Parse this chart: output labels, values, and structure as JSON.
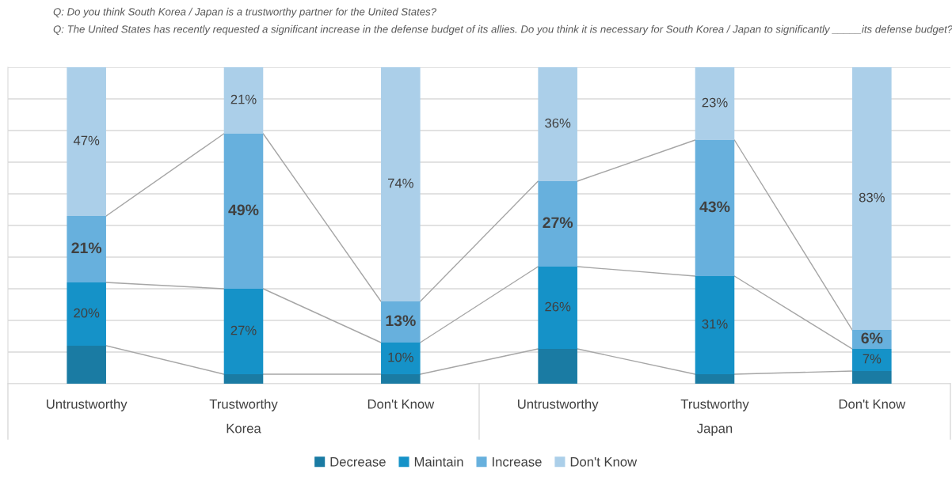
{
  "chart_data": {
    "type": "bar",
    "stacked": true,
    "title": "Q: Do you think South Korea / Japan is a trustworthy partner for the United States?",
    "subtitle": "Q: The United States has recently requested a significant increase in the defense budget of its allies. Do you think it is necessary for South Korea / Japan to significantly _____its defense budget?",
    "categories": [
      "Untrustworthy",
      "Trustworthy",
      "Don't Know",
      "Untrustworthy",
      "Trustworthy",
      "Don't Know"
    ],
    "annotations": [
      "Korea",
      "Japan"
    ],
    "ylim": [
      0,
      100
    ],
    "yticks": [
      {
        "value": 0,
        "label": null
      },
      {
        "value": 10,
        "label": null
      },
      {
        "value": 20,
        "label": null
      },
      {
        "value": 30,
        "label": null
      },
      {
        "value": 40,
        "label": null
      },
      {
        "value": 50,
        "label": null
      },
      {
        "value": 60,
        "label": null
      },
      {
        "value": 70,
        "label": null
      },
      {
        "value": 80,
        "label": null
      },
      {
        "value": 90,
        "label": null
      },
      {
        "value": 100,
        "label": null
      }
    ],
    "tick_labels": "x",
    "grid": "y",
    "legend": "bottom",
    "series": [
      {
        "name": "Decrease",
        "color": "#1a7ba3",
        "values": [
          12,
          3,
          3,
          11,
          3,
          4
        ],
        "value_labels": [
          null,
          null,
          null,
          null,
          null,
          null
        ]
      },
      {
        "name": "Maintain",
        "color": "#1592c8",
        "values": [
          20,
          27,
          10,
          26,
          31,
          7
        ],
        "value_labels": [
          "20%",
          "27%",
          "10%",
          "26%",
          "31%",
          "7%"
        ]
      },
      {
        "name": "Increase",
        "color": "#67b0dd",
        "values": [
          21,
          49,
          13,
          27,
          43,
          6
        ],
        "value_labels": [
          "21%",
          "49%",
          "13%",
          "27%",
          "43%",
          "6%"
        ]
      },
      {
        "name": "Don't Know",
        "color": "#abcfe9",
        "values": [
          47,
          21,
          74,
          36,
          23,
          83
        ],
        "value_labels": [
          "47%",
          "21%",
          "74%",
          "36%",
          "23%",
          "83%"
        ]
      }
    ]
  }
}
